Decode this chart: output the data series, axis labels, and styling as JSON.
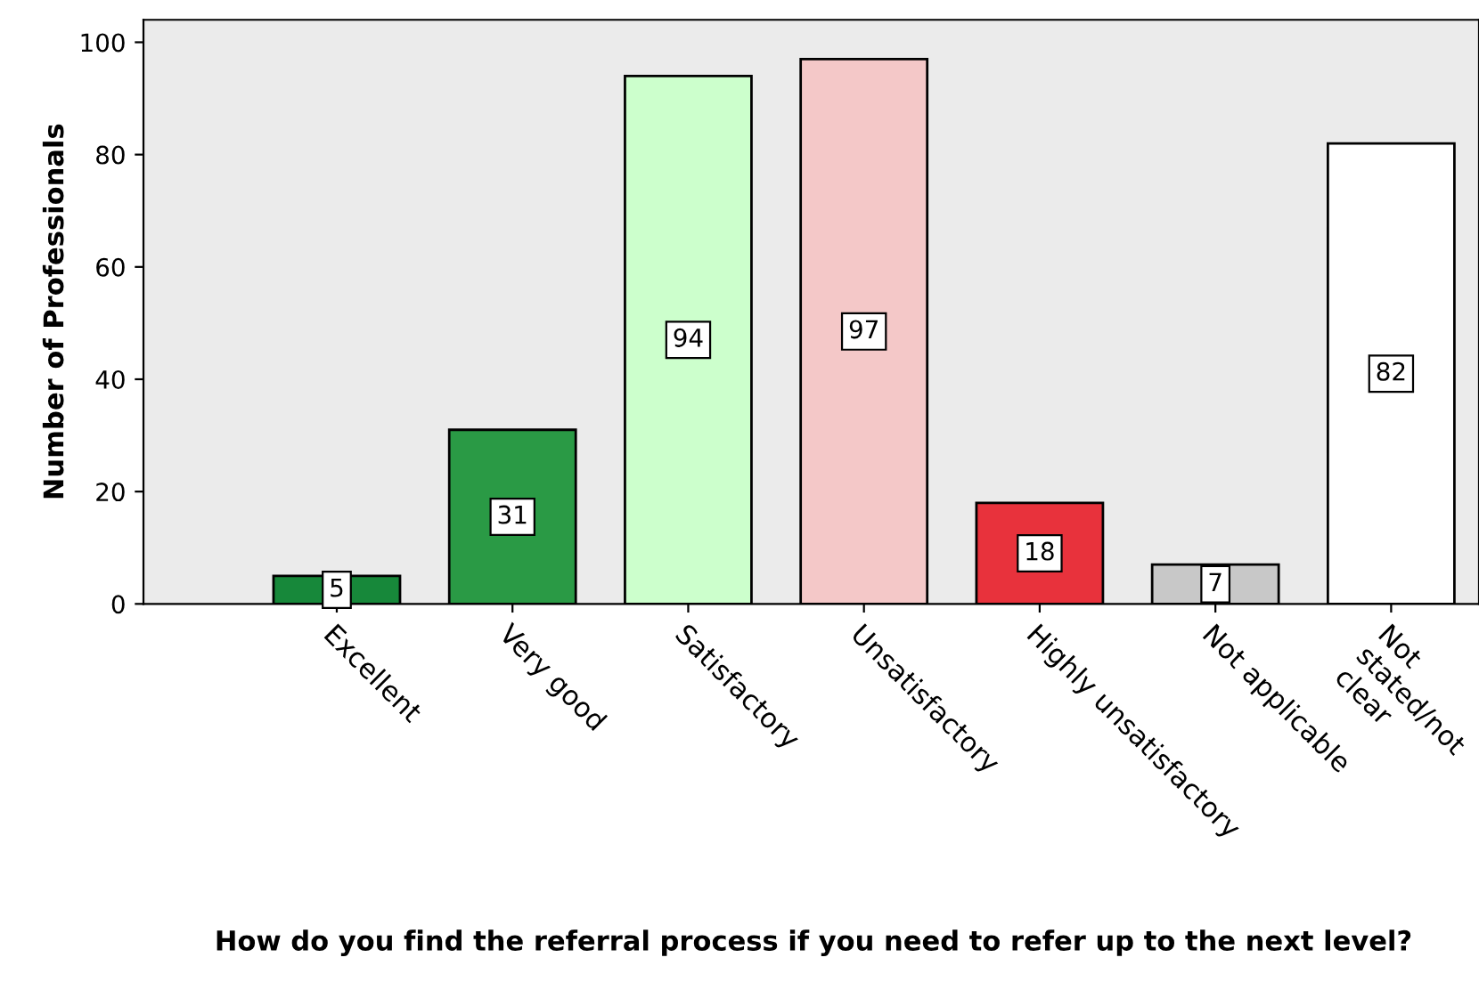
{
  "chart_data": {
    "type": "bar",
    "categories": [
      "Excellent",
      "Very good",
      "Satisfactory",
      "Unsatisfactory",
      "Highly unsatisfactory",
      "Not applicable",
      "Not\nstated/not\nclear"
    ],
    "values": [
      5,
      31,
      94,
      97,
      18,
      7,
      82
    ],
    "colors": [
      "#17883a",
      "#2a9a45",
      "#ccffcc",
      "#f4c8c8",
      "#e8323c",
      "#c8c8c8",
      "#ffffff"
    ],
    "ylim": [
      0,
      104
    ],
    "yticks": [
      0,
      20,
      40,
      60,
      80,
      100
    ],
    "ylabel": "Number of Professionals",
    "xlabel": "How do you find the referral process if you need to refer up to the next level?",
    "data_labels": true,
    "grid": false,
    "legend": false
  }
}
